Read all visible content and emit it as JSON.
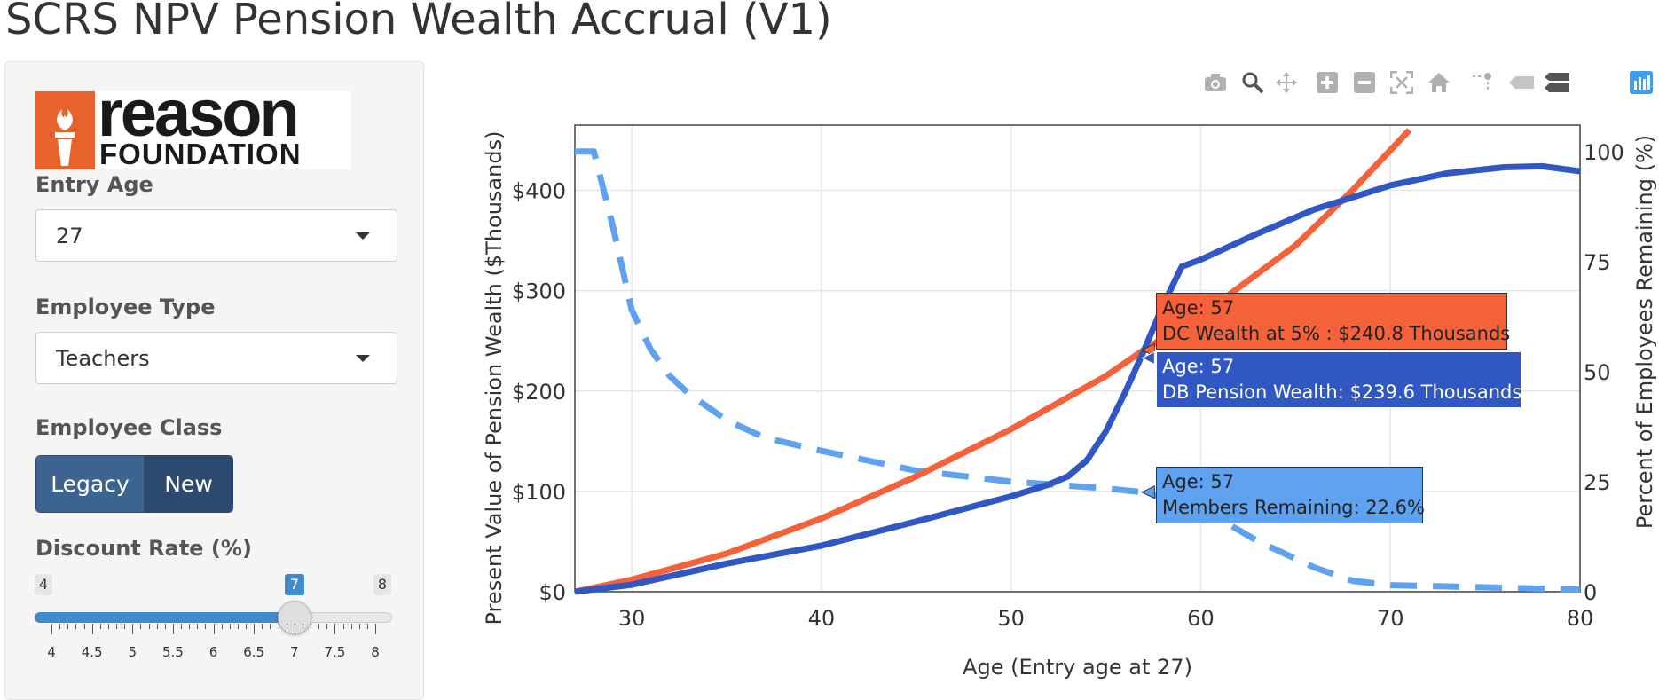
{
  "page_title": "SCRS NPV Pension Wealth Accrual (V1)",
  "sidebar": {
    "logo": {
      "word": "reason",
      "sub": "FOUNDATION"
    },
    "entry_age": {
      "label": "Entry Age",
      "value": "27"
    },
    "employee_type": {
      "label": "Employee Type",
      "value": "Teachers"
    },
    "employee_class": {
      "label": "Employee Class",
      "options": [
        "Legacy",
        "New"
      ],
      "selected": "New"
    },
    "discount_rate": {
      "label": "Discount Rate (%)",
      "min": "4",
      "max": "8",
      "value": "7",
      "value_fraction": 0.75,
      "ticks": [
        "4",
        "4.5",
        "5",
        "5.5",
        "6",
        "6.5",
        "7",
        "7.5",
        "8"
      ]
    }
  },
  "modebar": {
    "icons": [
      "camera-icon",
      "zoom-icon",
      "pan-icon",
      "zoom-in-icon",
      "zoom-out-icon",
      "autoscale-icon",
      "reset-axes-icon",
      "spike-lines-icon",
      "hover-closest-icon",
      "hover-compare-icon",
      "plotly-logo-icon"
    ]
  },
  "colors": {
    "db": "#3057c4",
    "dc": "#f4613a",
    "members": "#5fa2f0"
  },
  "tooltips": {
    "dc": {
      "line1": "Age: 57",
      "line2": "DC Wealth at 5% : $240.8 Thousands"
    },
    "db": {
      "line1": "Age: 57",
      "line2": "DB Pension Wealth: $239.6 Thousands"
    },
    "members": {
      "line1": "Age: 57",
      "line2": "Members Remaining: 22.6%"
    }
  },
  "chart_data": {
    "type": "line",
    "xlabel": "Age (Entry age at 27)",
    "ylabel": "Present Value of Pension Wealth ($Thousands)",
    "y2label": "Percent of Employees Remaining (%)",
    "xlim": [
      27,
      80
    ],
    "ylim": [
      0,
      465
    ],
    "y2lim": [
      0,
      106
    ],
    "x_ticks": [
      "30",
      "40",
      "50",
      "60",
      "70",
      "80"
    ],
    "y_ticks": [
      "$0",
      "$100",
      "$200",
      "$300",
      "$400"
    ],
    "y2_ticks": [
      "0",
      "25",
      "50",
      "75",
      "100"
    ],
    "grid": true,
    "series": [
      {
        "key": "dc",
        "axis": "y",
        "dash": false,
        "x": [
          27,
          30,
          35,
          40,
          45,
          50,
          55,
          57,
          60,
          65,
          68,
          71
        ],
        "values": [
          0,
          12,
          38,
          73,
          115,
          162,
          215,
          241,
          275,
          345,
          400,
          460
        ]
      },
      {
        "key": "db",
        "axis": "y",
        "dash": false,
        "x": [
          27,
          30,
          35,
          40,
          45,
          50,
          52,
          53,
          54,
          55,
          56,
          57,
          58,
          59,
          60,
          63,
          66,
          70,
          73,
          76,
          78,
          80
        ],
        "values": [
          0,
          7,
          28,
          46,
          70,
          95,
          107,
          115,
          131,
          160,
          198,
          240,
          285,
          324,
          331,
          357,
          381,
          405,
          417,
          423,
          424,
          419
        ]
      },
      {
        "key": "members",
        "axis": "y2",
        "dash": true,
        "x": [
          27,
          28,
          29,
          30,
          31,
          32,
          33,
          34,
          35,
          37,
          40,
          45,
          50,
          55,
          57,
          60,
          63,
          66,
          68,
          70,
          75,
          80
        ],
        "values": [
          100,
          100,
          83,
          64,
          55,
          49,
          45,
          42,
          39,
          35,
          32,
          27.5,
          25,
          23.5,
          22.6,
          19,
          11.5,
          5.5,
          2.5,
          1.5,
          1,
          0.5
        ]
      }
    ]
  }
}
